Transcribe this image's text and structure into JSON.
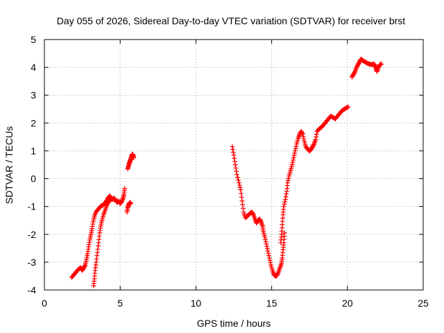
{
  "chart_data": {
    "type": "scatter",
    "title": "Day 055 of 2026, Sidereal Day-to-day VTEC variation (SDTVAR) for receiver brst",
    "xlabel": "GPS time / hours",
    "ylabel": "SDTVAR / TECUs",
    "xlim": [
      0,
      25
    ],
    "ylim": [
      -4,
      5
    ],
    "xticks": [
      0,
      5,
      10,
      15,
      20,
      25
    ],
    "yticks": [
      -4,
      -3,
      -2,
      -1,
      0,
      1,
      2,
      3,
      4,
      5
    ],
    "grid": true,
    "marker": "+",
    "colors": {
      "series": "#ff0000",
      "grid": "#a0a0a0",
      "axis": "#000000"
    },
    "series": [
      {
        "name": "SDTVAR",
        "segments": [
          [
            [
              1.8,
              -3.55
            ],
            [
              1.95,
              -3.45
            ],
            [
              2.1,
              -3.35
            ],
            [
              2.25,
              -3.25
            ],
            [
              2.4,
              -3.2
            ],
            [
              2.5,
              -3.3
            ],
            [
              2.6,
              -3.2
            ],
            [
              2.7,
              -3.1
            ],
            [
              2.78,
              -2.9
            ],
            [
              2.85,
              -2.7
            ],
            [
              2.92,
              -2.45
            ],
            [
              3.0,
              -2.2
            ],
            [
              3.07,
              -2.0
            ],
            [
              3.15,
              -1.8
            ],
            [
              3.22,
              -1.55
            ],
            [
              3.3,
              -1.35
            ],
            [
              3.4,
              -1.2
            ],
            [
              3.55,
              -1.1
            ],
            [
              3.7,
              -1.0
            ],
            [
              3.85,
              -0.95
            ],
            [
              4.0,
              -0.88
            ],
            [
              4.1,
              -0.8
            ],
            [
              4.2,
              -0.7
            ],
            [
              4.3,
              -0.62
            ],
            [
              4.4,
              -0.68
            ],
            [
              4.5,
              -0.75
            ],
            [
              4.6,
              -0.7
            ],
            [
              4.7,
              -0.78
            ],
            [
              4.8,
              -0.85
            ],
            [
              4.9,
              -0.8
            ],
            [
              5.0,
              -0.9
            ],
            [
              5.1,
              -0.82
            ],
            [
              5.2,
              -0.7
            ],
            [
              5.25,
              -0.55
            ],
            [
              5.3,
              -0.35
            ]
          ],
          [
            [
              3.25,
              -3.85
            ],
            [
              3.3,
              -3.6
            ],
            [
              3.35,
              -3.3
            ],
            [
              3.42,
              -3.0
            ],
            [
              3.5,
              -2.65
            ],
            [
              3.58,
              -2.3
            ],
            [
              3.65,
              -1.95
            ],
            [
              3.72,
              -1.7
            ],
            [
              3.8,
              -1.5
            ],
            [
              3.9,
              -1.3
            ],
            [
              4.0,
              -1.15
            ],
            [
              4.1,
              -0.98
            ],
            [
              4.2,
              -0.85
            ],
            [
              4.3,
              -0.8
            ],
            [
              4.4,
              -0.75
            ]
          ],
          [
            [
              5.45,
              -1.2
            ],
            [
              5.5,
              -1.05
            ],
            [
              5.55,
              -0.95
            ],
            [
              5.6,
              -0.9
            ],
            [
              5.65,
              -0.85
            ],
            [
              5.7,
              -0.9
            ]
          ],
          [
            [
              5.5,
              0.35
            ],
            [
              5.55,
              0.45
            ],
            [
              5.6,
              0.55
            ],
            [
              5.65,
              0.62
            ],
            [
              5.7,
              0.7
            ],
            [
              5.75,
              0.8
            ],
            [
              5.8,
              0.88
            ],
            [
              5.85,
              0.85
            ],
            [
              5.9,
              0.75
            ]
          ],
          [
            [
              12.4,
              1.15
            ],
            [
              12.5,
              0.85
            ],
            [
              12.6,
              0.5
            ],
            [
              12.7,
              0.15
            ],
            [
              12.85,
              -0.15
            ],
            [
              12.95,
              -0.4
            ],
            [
              13.05,
              -0.8
            ],
            [
              13.15,
              -1.2
            ],
            [
              13.25,
              -1.4
            ],
            [
              13.4,
              -1.35
            ],
            [
              13.55,
              -1.25
            ],
            [
              13.7,
              -1.2
            ],
            [
              13.8,
              -1.3
            ],
            [
              13.9,
              -1.45
            ],
            [
              14.0,
              -1.6
            ],
            [
              14.1,
              -1.5
            ],
            [
              14.2,
              -1.45
            ],
            [
              14.3,
              -1.55
            ],
            [
              14.4,
              -1.7
            ],
            [
              14.45,
              -1.9
            ],
            [
              14.55,
              -2.1
            ],
            [
              14.65,
              -2.35
            ],
            [
              14.75,
              -2.6
            ],
            [
              14.85,
              -2.85
            ],
            [
              14.95,
              -3.1
            ],
            [
              15.05,
              -3.3
            ],
            [
              15.15,
              -3.45
            ],
            [
              15.25,
              -3.5
            ],
            [
              15.35,
              -3.48
            ],
            [
              15.45,
              -3.35
            ],
            [
              15.55,
              -3.2
            ],
            [
              15.65,
              -3.05
            ],
            [
              15.7,
              -2.85
            ],
            [
              15.75,
              -2.55
            ],
            [
              15.8,
              -2.3
            ],
            [
              15.85,
              -1.95
            ]
          ],
          [
            [
              15.6,
              -2.3
            ],
            [
              15.65,
              -2.0
            ],
            [
              15.7,
              -1.65
            ],
            [
              15.75,
              -1.3
            ],
            [
              15.8,
              -1.0
            ],
            [
              15.9,
              -0.75
            ],
            [
              16.0,
              -0.45
            ],
            [
              16.05,
              -0.15
            ],
            [
              16.15,
              0.1
            ],
            [
              16.25,
              0.3
            ],
            [
              16.35,
              0.5
            ],
            [
              16.45,
              0.75
            ],
            [
              16.55,
              1.0
            ],
            [
              16.65,
              1.25
            ],
            [
              16.75,
              1.45
            ],
            [
              16.85,
              1.6
            ],
            [
              16.95,
              1.7
            ],
            [
              17.05,
              1.6
            ],
            [
              17.15,
              1.35
            ],
            [
              17.25,
              1.15
            ],
            [
              17.4,
              1.05
            ],
            [
              17.5,
              1.0
            ],
            [
              17.6,
              1.05
            ],
            [
              17.7,
              1.15
            ],
            [
              17.8,
              1.25
            ],
            [
              17.9,
              1.4
            ],
            [
              18.0,
              1.7
            ],
            [
              18.15,
              1.8
            ],
            [
              18.3,
              1.85
            ],
            [
              18.45,
              1.95
            ],
            [
              18.6,
              2.05
            ],
            [
              18.75,
              2.15
            ],
            [
              18.9,
              2.25
            ],
            [
              19.05,
              2.2
            ],
            [
              19.2,
              2.15
            ],
            [
              19.35,
              2.25
            ],
            [
              19.5,
              2.35
            ],
            [
              19.65,
              2.45
            ],
            [
              19.8,
              2.5
            ],
            [
              19.95,
              2.55
            ],
            [
              20.05,
              2.58
            ]
          ],
          [
            [
              20.3,
              3.65
            ],
            [
              20.4,
              3.75
            ],
            [
              20.5,
              3.85
            ],
            [
              20.6,
              4.0
            ],
            [
              20.7,
              4.1
            ],
            [
              20.8,
              4.2
            ],
            [
              20.9,
              4.3
            ],
            [
              21.0,
              4.25
            ],
            [
              21.15,
              4.2
            ],
            [
              21.3,
              4.15
            ],
            [
              21.45,
              4.12
            ],
            [
              21.6,
              4.1
            ],
            [
              21.75,
              4.12
            ],
            [
              21.85,
              4.05
            ],
            [
              21.9,
              3.95
            ],
            [
              21.95,
              3.85
            ],
            [
              22.05,
              4.0
            ],
            [
              22.15,
              4.1
            ],
            [
              22.25,
              4.12
            ]
          ]
        ]
      }
    ]
  }
}
